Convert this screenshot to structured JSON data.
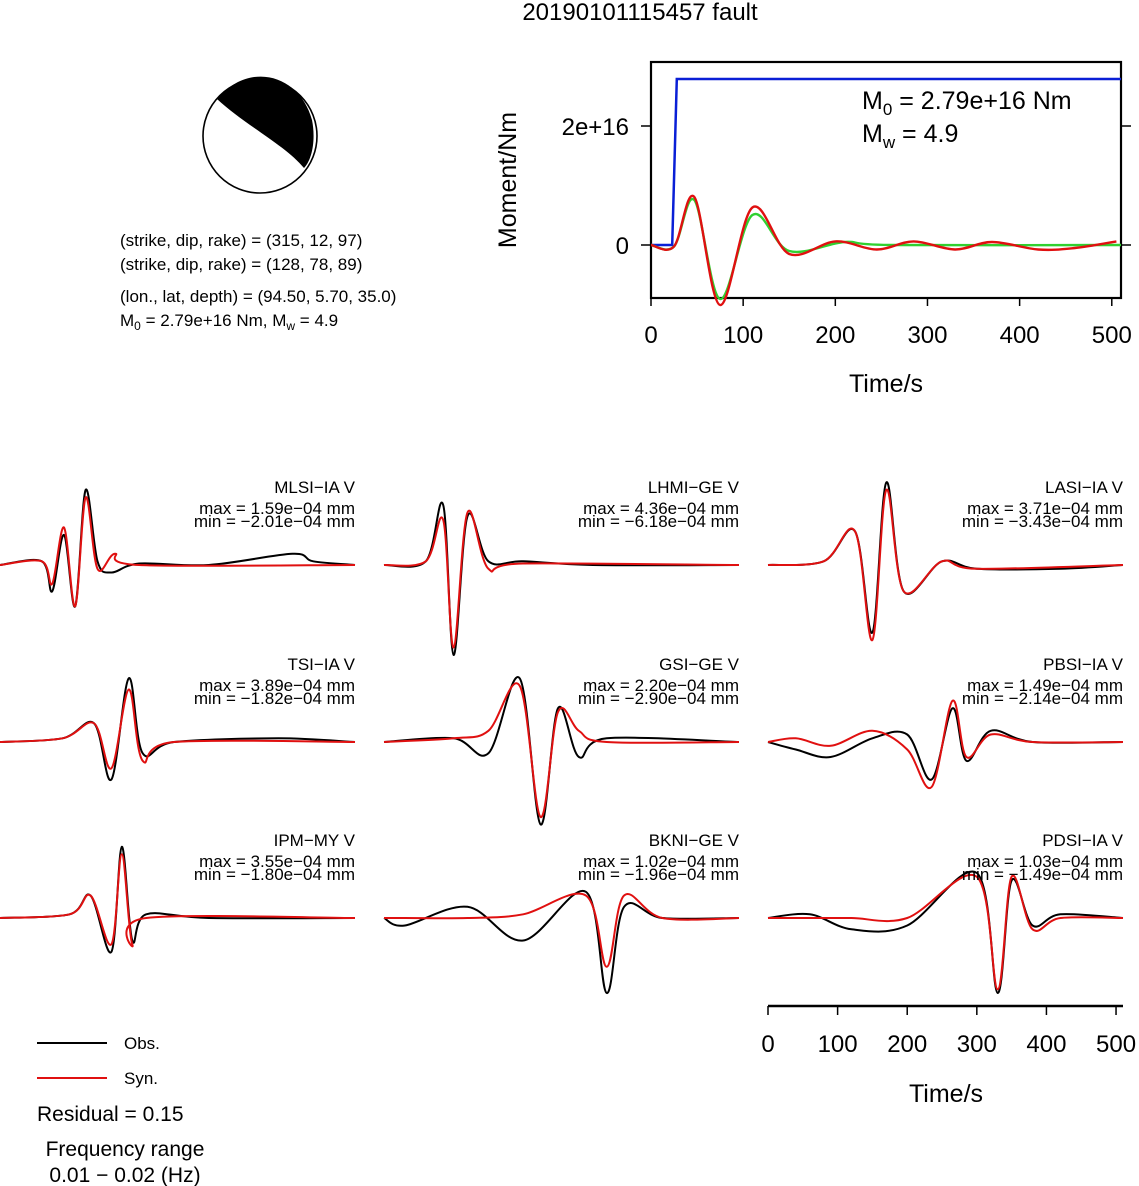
{
  "figure": {
    "title": "20190101115457 fault"
  },
  "mechanism": {
    "line1": "(strike, dip, rake) = (315, 12, 97)",
    "line2": "(strike, dip, rake) = (128, 78, 89)",
    "line3": "(lon., lat, depth) = (94.50, 5.70, 35.0)",
    "line4_m0": "2.79e+16 Nm",
    "line4_mw": "4.9"
  },
  "colors": {
    "obs": "#000000",
    "syn": "#e01010",
    "moment": "#0a1fd6",
    "stf": "#30d030"
  },
  "legend": {
    "obs": "Obs.",
    "syn": "Syn.",
    "residual": "Residual = 0.15",
    "freq_title": "Frequency range",
    "freq_range": "0.01 − 0.02 (Hz)"
  },
  "chart_data": [
    {
      "type": "line",
      "xlabel": "Time/s",
      "ylabel": "Moment/Nm",
      "x_ticks": [
        "0",
        "100",
        "200",
        "300",
        "400",
        "500"
      ],
      "y_ticks": [
        "0",
        "2e+16"
      ],
      "xlim": [
        0,
        510
      ],
      "annotation": {
        "m0": "2.79e+16 Nm",
        "mw": "4.9"
      },
      "series": [
        {
          "color": "blue",
          "x": [
            0,
            23,
            28,
            510
          ],
          "y": [
            0,
            0,
            2.79e+16,
            2.79e+16
          ]
        },
        {
          "color": "green",
          "x": [
            0,
            25,
            47,
            75,
            110,
            150,
            210,
            260,
            510
          ],
          "y": [
            0,
            -0.05,
            1.5,
            -1.8,
            1.0,
            -0.2,
            0.1,
            0.0,
            0.0
          ]
        },
        {
          "color": "red",
          "x": [
            0,
            25,
            47,
            75,
            110,
            150,
            200,
            245,
            285,
            330,
            370,
            420,
            460,
            505
          ],
          "y": [
            0,
            -0.05,
            1.6,
            -2.0,
            1.25,
            -0.3,
            0.12,
            -0.15,
            0.12,
            -0.15,
            0.1,
            -0.15,
            -0.1,
            0.12
          ]
        }
      ]
    },
    {
      "type": "line",
      "xlabel": "Time/s",
      "x_ticks": [
        "0",
        "100",
        "200",
        "300",
        "400",
        "500"
      ],
      "xlim": [
        0,
        510
      ],
      "stations": [
        {
          "name": "MLSI−IA V",
          "max": "max = 1.59e−04 mm",
          "min": "min = −2.01e−04 mm",
          "obs": [
            [
              0,
              0
            ],
            [
              60,
              0.05
            ],
            [
              75,
              -0.35
            ],
            [
              92,
              0.4
            ],
            [
              108,
              -0.55
            ],
            [
              123,
              1.0
            ],
            [
              140,
              0.05
            ],
            [
              160,
              -0.1
            ],
            [
              200,
              0.02
            ],
            [
              300,
              0
            ],
            [
              420,
              0.15
            ],
            [
              450,
              0.05
            ],
            [
              510,
              0
            ]
          ],
          "syn": [
            [
              0,
              0
            ],
            [
              60,
              0.05
            ],
            [
              75,
              -0.25
            ],
            [
              92,
              0.5
            ],
            [
              108,
              -0.55
            ],
            [
              123,
              0.9
            ],
            [
              140,
              -0.05
            ],
            [
              165,
              0.15
            ],
            [
              200,
              0
            ],
            [
              510,
              0
            ]
          ]
        },
        {
          "name": "LHMI−GE V",
          "max": "max = 4.36e−04 mm",
          "min": "min = −6.18e−04 mm",
          "obs": [
            [
              0,
              0
            ],
            [
              60,
              0.05
            ],
            [
              85,
              0.8
            ],
            [
              100,
              -1.2
            ],
            [
              120,
              0.65
            ],
            [
              150,
              0.05
            ],
            [
              200,
              0.05
            ],
            [
              300,
              0
            ],
            [
              510,
              0
            ]
          ],
          "syn": [
            [
              0,
              0
            ],
            [
              60,
              0.05
            ],
            [
              85,
              0.6
            ],
            [
              100,
              -1.1
            ],
            [
              120,
              0.7
            ],
            [
              150,
              -0.05
            ],
            [
              200,
              0.02
            ],
            [
              510,
              0
            ]
          ]
        },
        {
          "name": "LASI−IA V",
          "max": "max = 3.71e−04 mm",
          "min": "min = −3.43e−04 mm",
          "obs": [
            [
              0,
              0
            ],
            [
              80,
              0.05
            ],
            [
              125,
              0.45
            ],
            [
              150,
              -0.9
            ],
            [
              170,
              1.1
            ],
            [
              195,
              -0.35
            ],
            [
              250,
              0.05
            ],
            [
              300,
              -0.05
            ],
            [
              420,
              -0.05
            ],
            [
              510,
              0
            ]
          ],
          "syn": [
            [
              0,
              0
            ],
            [
              80,
              0.05
            ],
            [
              125,
              0.45
            ],
            [
              150,
              -1.0
            ],
            [
              170,
              1.0
            ],
            [
              195,
              -0.35
            ],
            [
              250,
              0.05
            ],
            [
              300,
              -0.05
            ],
            [
              510,
              0
            ]
          ]
        },
        {
          "name": "TSI−IA V",
          "max": "max = 3.89e−04 mm",
          "min": "min = −1.82e−04 mm",
          "obs": [
            [
              0,
              0
            ],
            [
              90,
              0.05
            ],
            [
              135,
              0.25
            ],
            [
              160,
              -0.5
            ],
            [
              185,
              0.85
            ],
            [
              205,
              -0.15
            ],
            [
              250,
              0
            ],
            [
              400,
              0.05
            ],
            [
              510,
              0
            ]
          ],
          "syn": [
            [
              0,
              0
            ],
            [
              90,
              0.05
            ],
            [
              135,
              0.25
            ],
            [
              160,
              -0.35
            ],
            [
              185,
              0.7
            ],
            [
              205,
              -0.25
            ],
            [
              250,
              0
            ],
            [
              510,
              0
            ]
          ]
        },
        {
          "name": "GSI−GE V",
          "max": "max = 2.20e−04 mm",
          "min": "min = −2.90e−04 mm",
          "obs": [
            [
              0,
              0
            ],
            [
              100,
              0.05
            ],
            [
              150,
              -0.15
            ],
            [
              195,
              0.85
            ],
            [
              225,
              -1.1
            ],
            [
              250,
              0.45
            ],
            [
              280,
              -0.2
            ],
            [
              320,
              0.05
            ],
            [
              510,
              0
            ]
          ],
          "syn": [
            [
              0,
              0
            ],
            [
              100,
              0.05
            ],
            [
              150,
              0.15
            ],
            [
              195,
              0.75
            ],
            [
              225,
              -1.0
            ],
            [
              250,
              0.4
            ],
            [
              280,
              0.15
            ],
            [
              320,
              0.0
            ],
            [
              510,
              0
            ]
          ]
        },
        {
          "name": "PBSI−IA V",
          "max": "max = 1.49e−04 mm",
          "min": "min = −2.14e−04 mm",
          "obs": [
            [
              0,
              0
            ],
            [
              40,
              -0.1
            ],
            [
              90,
              -0.2
            ],
            [
              150,
              0.05
            ],
            [
              200,
              0.1
            ],
            [
              235,
              -0.5
            ],
            [
              265,
              0.45
            ],
            [
              285,
              -0.25
            ],
            [
              320,
              0.15
            ],
            [
              380,
              0
            ],
            [
              510,
              0
            ]
          ],
          "syn": [
            [
              0,
              0
            ],
            [
              40,
              0.05
            ],
            [
              90,
              -0.05
            ],
            [
              150,
              0.15
            ],
            [
              200,
              -0.1
            ],
            [
              235,
              -0.6
            ],
            [
              265,
              0.55
            ],
            [
              285,
              -0.2
            ],
            [
              320,
              0.1
            ],
            [
              380,
              0
            ],
            [
              510,
              0
            ]
          ]
        },
        {
          "name": "IPM−MY V",
          "max": "max = 3.55e−04 mm",
          "min": "min = −1.80e−04 mm",
          "obs": [
            [
              0,
              0
            ],
            [
              100,
              0.05
            ],
            [
              130,
              0.3
            ],
            [
              160,
              -0.45
            ],
            [
              175,
              0.95
            ],
            [
              190,
              -0.3
            ],
            [
              210,
              0.05
            ],
            [
              300,
              0
            ],
            [
              510,
              0
            ]
          ],
          "syn": [
            [
              0,
              0
            ],
            [
              100,
              0.05
            ],
            [
              130,
              0.3
            ],
            [
              160,
              -0.35
            ],
            [
              175,
              0.85
            ],
            [
              190,
              -0.35
            ],
            [
              210,
              0.0
            ],
            [
              510,
              0
            ]
          ]
        },
        {
          "name": "BKNI−GE V",
          "max": "max = 1.02e−04 mm",
          "min": "min = −1.96e−04 mm",
          "obs": [
            [
              0,
              0
            ],
            [
              30,
              -0.1
            ],
            [
              120,
              0.15
            ],
            [
              200,
              -0.3
            ],
            [
              290,
              0.35
            ],
            [
              320,
              -1.0
            ],
            [
              345,
              0.15
            ],
            [
              400,
              0
            ],
            [
              510,
              0
            ]
          ],
          "syn": [
            [
              0,
              0
            ],
            [
              30,
              0
            ],
            [
              120,
              0
            ],
            [
              200,
              0.05
            ],
            [
              290,
              0.3
            ],
            [
              320,
              -0.65
            ],
            [
              345,
              0.3
            ],
            [
              400,
              0
            ],
            [
              510,
              0
            ]
          ]
        },
        {
          "name": "PDSI−IA V",
          "max": "max = 1.03e−04 mm",
          "min": "min = −1.49e−04 mm",
          "obs": [
            [
              0,
              0
            ],
            [
              60,
              0.05
            ],
            [
              120,
              -0.15
            ],
            [
              200,
              -0.1
            ],
            [
              300,
              0.6
            ],
            [
              330,
              -1.0
            ],
            [
              350,
              0.5
            ],
            [
              380,
              -0.1
            ],
            [
              420,
              0.05
            ],
            [
              510,
              0
            ]
          ],
          "syn": [
            [
              0,
              0
            ],
            [
              60,
              0
            ],
            [
              120,
              0
            ],
            [
              200,
              0
            ],
            [
              300,
              0.55
            ],
            [
              330,
              -0.95
            ],
            [
              350,
              0.55
            ],
            [
              380,
              -0.15
            ],
            [
              420,
              0.0
            ],
            [
              510,
              0
            ]
          ]
        }
      ]
    }
  ]
}
